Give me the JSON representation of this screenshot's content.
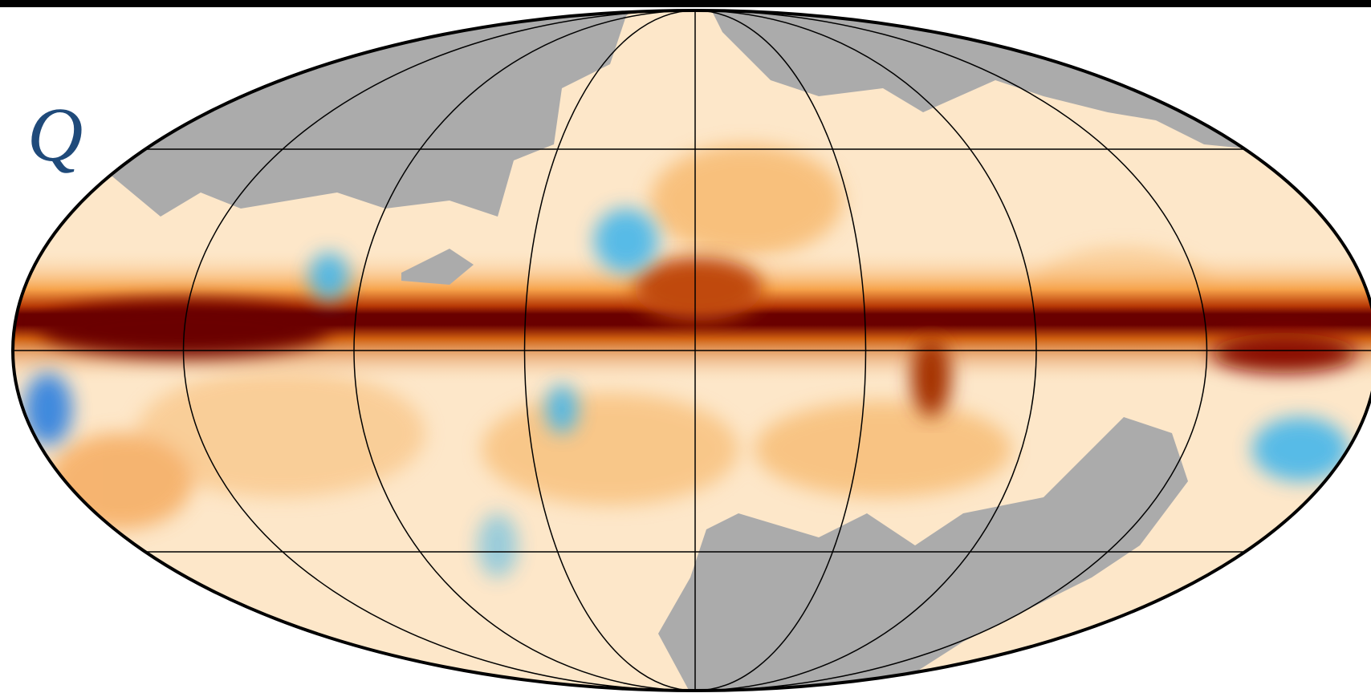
{
  "map": {
    "label": "Q"
  }
}
